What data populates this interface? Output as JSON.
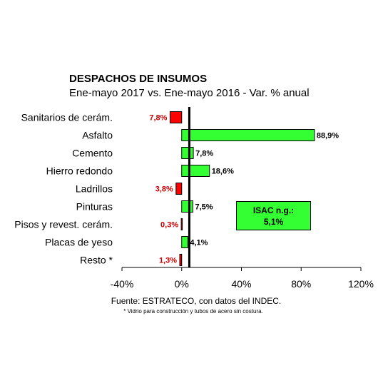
{
  "chart_data": {
    "type": "bar",
    "orientation": "horizontal",
    "title": "DESPACHOS DE INSUMOS",
    "subtitle": "Ene-mayo 2017 vs. Ene-mayo 2016 - Var. % anual",
    "categories": [
      "Sanitarios de cerám.",
      "Asfalto",
      "Cemento",
      "Hierro redondo",
      "Ladrillos",
      "Pinturas",
      "Pisos y revest. cerám.",
      "Placas de yeso",
      "Resto *"
    ],
    "values": [
      -7.8,
      88.9,
      7.8,
      18.6,
      -3.8,
      7.5,
      -0.3,
      4.1,
      -1.3
    ],
    "data_labels": [
      "7,8%",
      "88,9%",
      "7,8%",
      "18,6%",
      "3,8%",
      "7,5%",
      "0,3%",
      "4,1%",
      "1,3%"
    ],
    "xlim": [
      -40,
      120
    ],
    "xticks": [
      -40,
      0,
      40,
      80,
      120
    ],
    "xtick_labels": [
      "-40%",
      "0%",
      "40%",
      "80%",
      "120%"
    ],
    "reference_line": 5.1,
    "grid": false,
    "colors": {
      "positive": "#33ff33",
      "negative": "#ff0000",
      "negative_label": "#cc0000",
      "reference": "#000000"
    }
  },
  "isac_box": {
    "line1": "ISAC n.g.:",
    "line2": "5,1%"
  },
  "source": {
    "line1": "Fuente: ESTRATECO, con datos del INDEC.",
    "line2": "* Vidrio para construcción y tubos de acero sin costura."
  }
}
